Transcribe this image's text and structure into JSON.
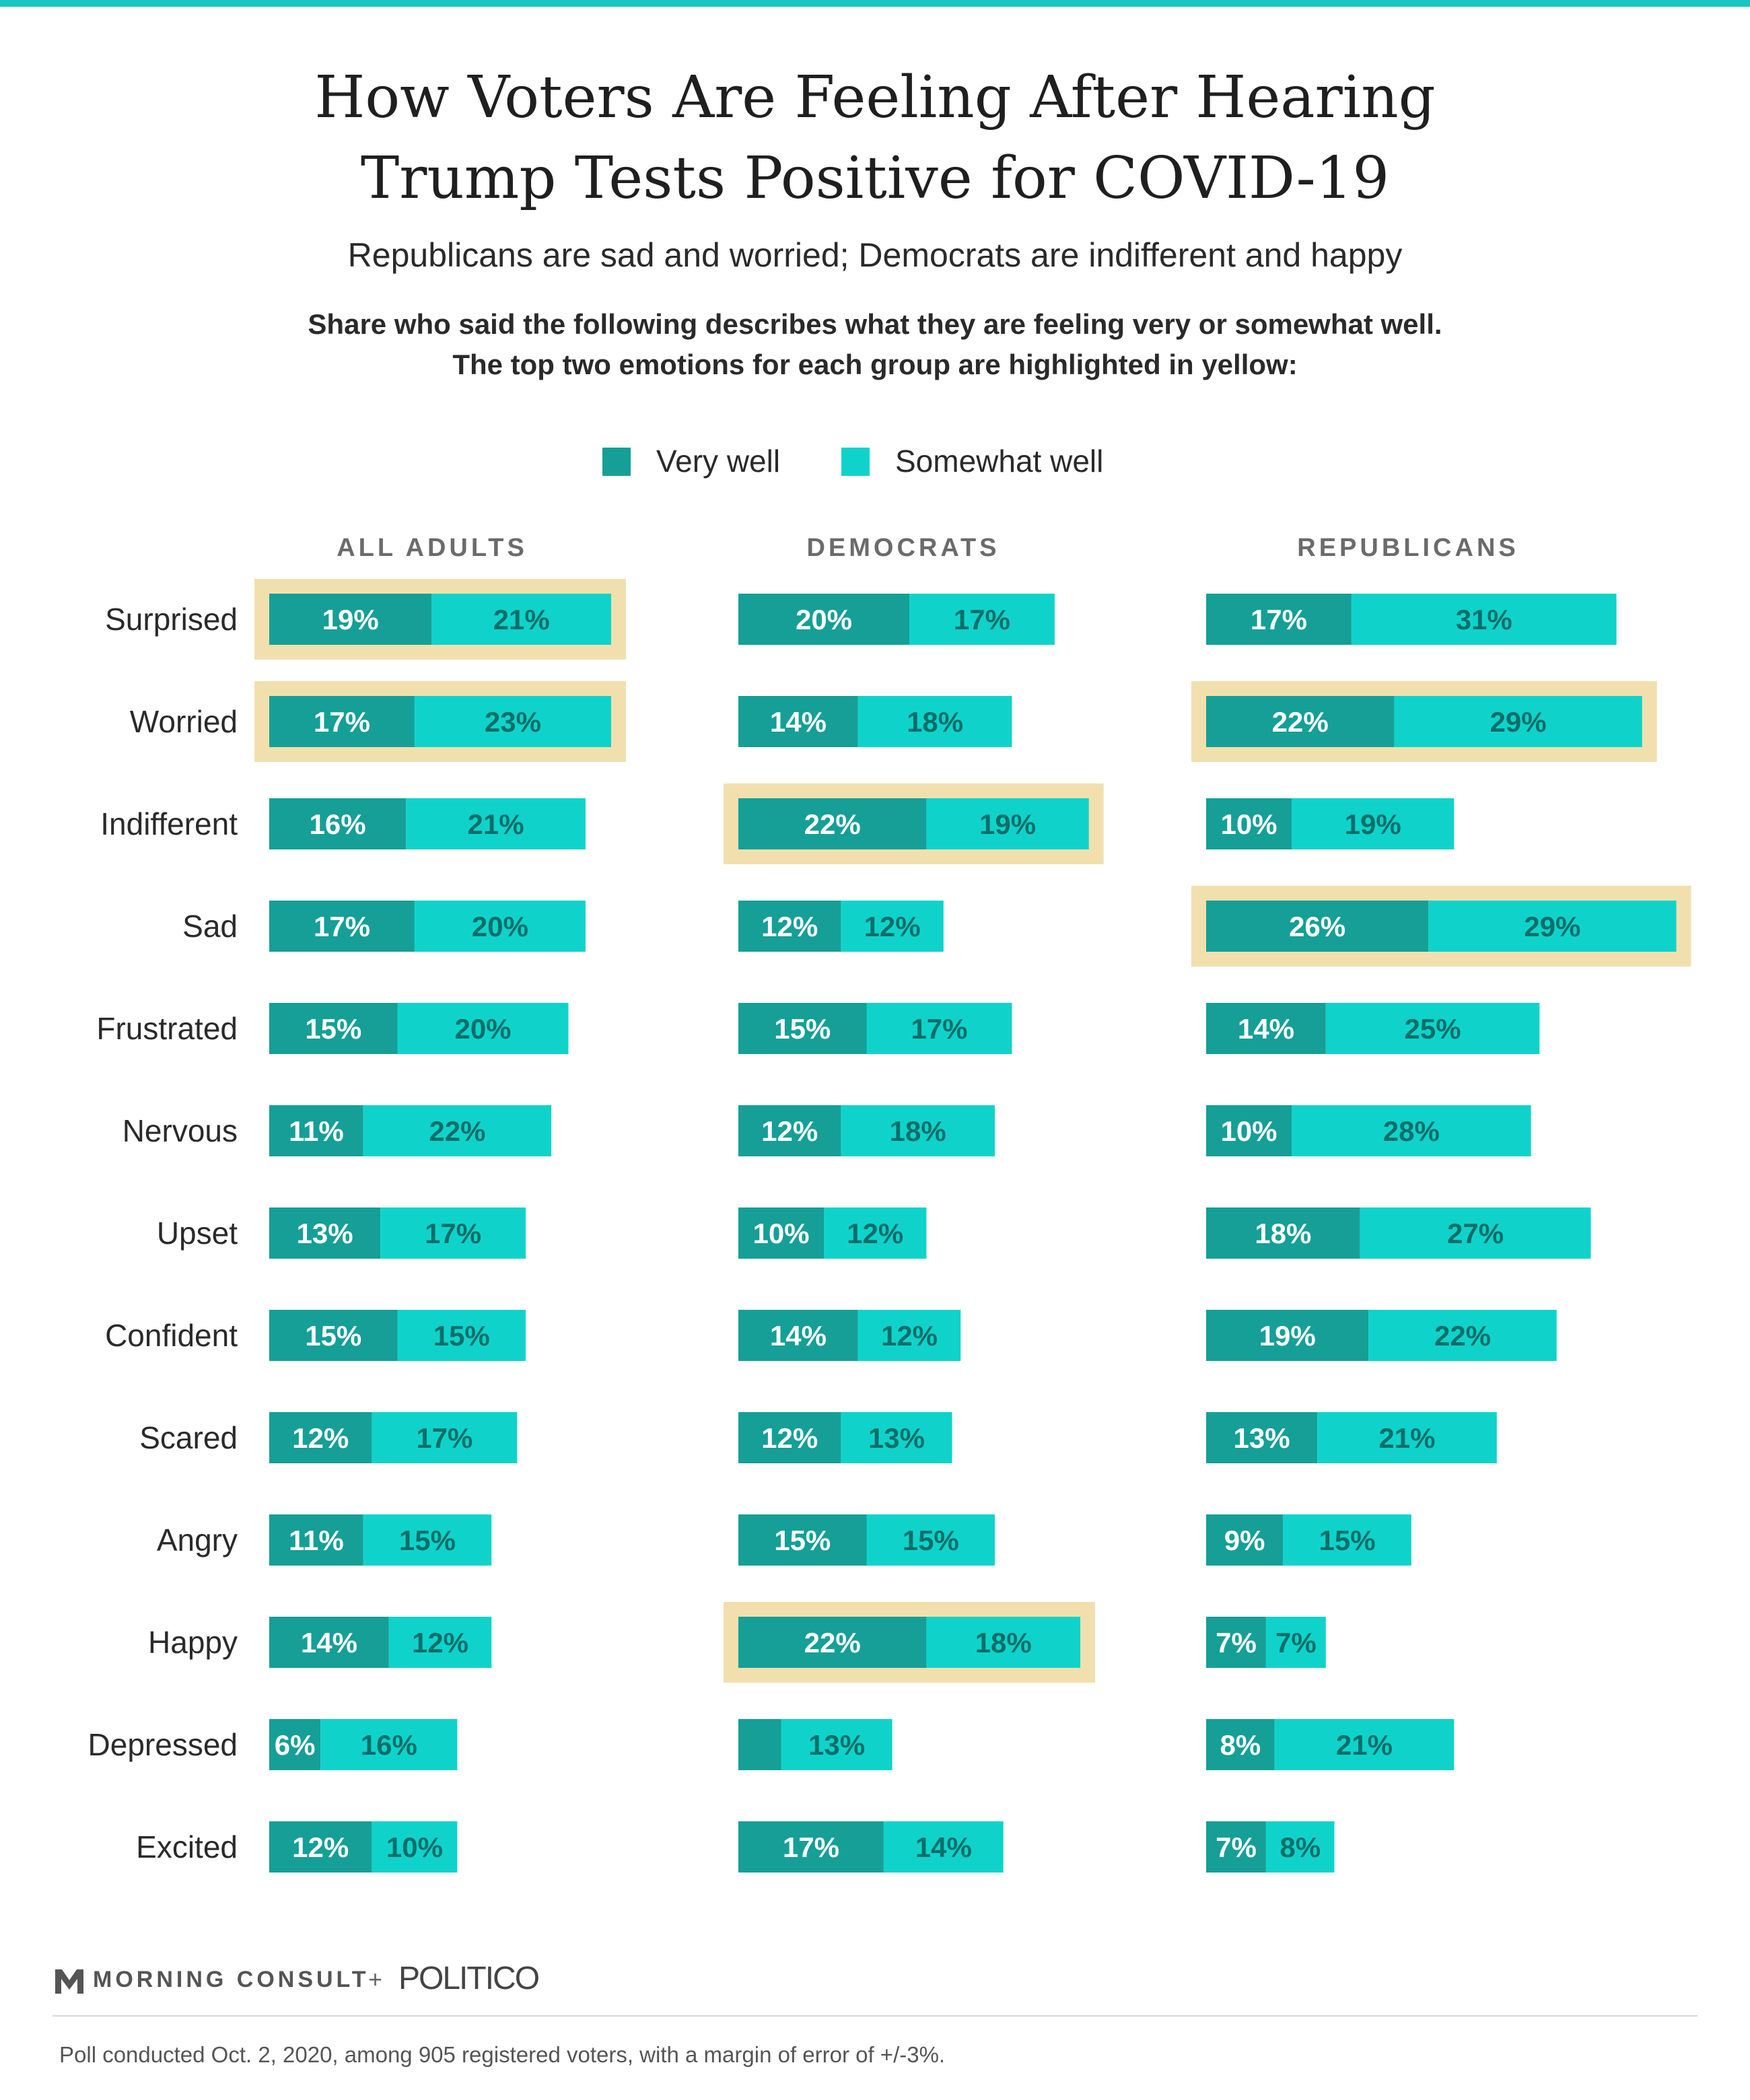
{
  "header": {
    "title_line1": "How Voters Are Feeling After Hearing",
    "title_line2": "Trump Tests Positive for COVID-19",
    "subtitle": "Republicans are sad and worried; Democrats are indifferent and happy",
    "description_line1": "Share who said the following describes what they are feeling very or somewhat well.",
    "description_line2": "The top two emotions for each group are highlighted in yellow:"
  },
  "legend": {
    "very_well": "Very well",
    "somewhat_well": "Somewhat well"
  },
  "colors": {
    "very_well": "#159f97",
    "somewhat_well": "#0fd3cb",
    "highlight": "#f1e0ae",
    "top_bar": "#1ac6c1"
  },
  "chart_data": {
    "type": "bar",
    "orientation": "horizontal",
    "stacked": true,
    "unit": "%",
    "categories": [
      "Surprised",
      "Worried",
      "Indifferent",
      "Sad",
      "Frustrated",
      "Nervous",
      "Upset",
      "Confident",
      "Scared",
      "Angry",
      "Happy",
      "Depressed",
      "Excited"
    ],
    "panels": [
      {
        "name": "ALL ADULTS",
        "very_well": [
          19,
          17,
          16,
          17,
          15,
          11,
          13,
          15,
          12,
          11,
          14,
          6,
          12
        ],
        "somewhat_well": [
          21,
          23,
          21,
          20,
          20,
          22,
          17,
          15,
          17,
          15,
          12,
          16,
          10
        ],
        "highlighted": [
          "Surprised",
          "Worried"
        ]
      },
      {
        "name": "DEMOCRATS",
        "very_well": [
          20,
          14,
          22,
          12,
          15,
          12,
          10,
          14,
          12,
          15,
          22,
          5,
          17
        ],
        "somewhat_well": [
          17,
          18,
          19,
          12,
          17,
          18,
          12,
          12,
          13,
          15,
          18,
          13,
          14
        ],
        "very_well_labels": [
          "20%",
          "14%",
          "22%",
          "12%",
          "15%",
          "12%",
          "10%",
          "14%",
          "12%",
          "15%",
          "22%",
          "",
          "17%"
        ],
        "highlighted": [
          "Indifferent",
          "Happy"
        ]
      },
      {
        "name": "REPUBLICANS",
        "very_well": [
          17,
          22,
          10,
          26,
          14,
          10,
          18,
          19,
          13,
          9,
          7,
          8,
          7
        ],
        "somewhat_well": [
          31,
          29,
          19,
          29,
          25,
          28,
          27,
          22,
          21,
          15,
          7,
          21,
          8
        ],
        "highlighted": [
          "Worried",
          "Sad"
        ]
      }
    ]
  },
  "footer": {
    "brand": "MORNING CONSULT",
    "plus": "+",
    "partner": "POLITICO",
    "note": "Poll conducted Oct. 2, 2020, among 905 registered voters, with a margin of error of +/-3%."
  }
}
